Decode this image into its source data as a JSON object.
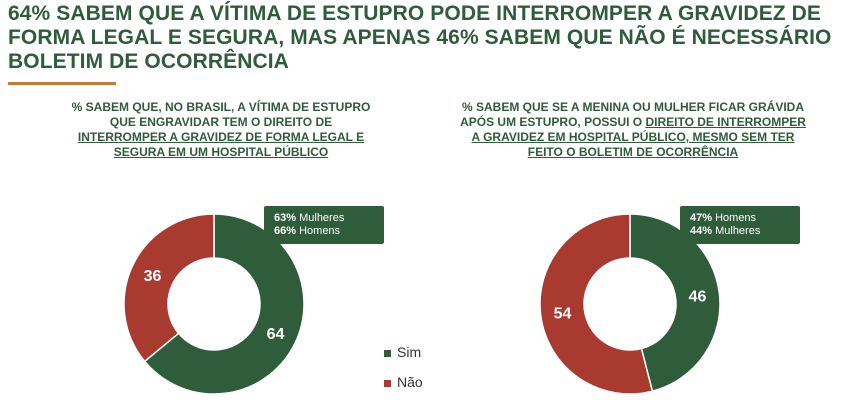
{
  "headline": "64% SABEM QUE A VÍTIMA DE ESTUPRO PODE INTERROMPER A GRAVIDEZ DE FORMA LEGAL E SEGURA, MAS APENAS 46% SABEM QUE NÃO É NECESSÁRIO BOLETIM DE OCORRÊNCIA",
  "colors": {
    "sim": "#2f5c3a",
    "nao": "#a83a2f",
    "accent": "#c27b3d"
  },
  "legend": {
    "sim": "Sim",
    "nao": "Não"
  },
  "chart_data": [
    {
      "type": "pie",
      "title_plain": "% SABEM QUE, NO BRASIL, A VÍTIMA DE ESTUPRO QUE ENGRAVIDAR TEM O DIREITO DE",
      "title_underlined": "INTERROMPER A GRAVIDEZ DE FORMA LEGAL E SEGURA EM UM HOSPITAL PÚBLICO",
      "labels": [
        "Sim",
        "Não"
      ],
      "values": [
        64,
        36
      ],
      "callout": [
        {
          "value": "63%",
          "label": "Mulheres"
        },
        {
          "value": "66%",
          "label": "Homens"
        }
      ]
    },
    {
      "type": "pie",
      "title_plain": "% SABEM QUE SE A MENINA OU MULHER FICAR GRÁVIDA APÓS UM ESTUPRO, POSSUI O",
      "title_underlined": "DIREITO DE INTERROMPER A GRAVIDEZ EM HOSPITAL PÚBLICO, MESMO SEM TER FEITO O BOLETIM DE OCORRÊNCIA",
      "labels": [
        "Sim",
        "Não"
      ],
      "values": [
        46,
        54
      ],
      "callout": [
        {
          "value": "47%",
          "label": "Homens"
        },
        {
          "value": "44%",
          "label": "Mulheres"
        }
      ]
    }
  ]
}
